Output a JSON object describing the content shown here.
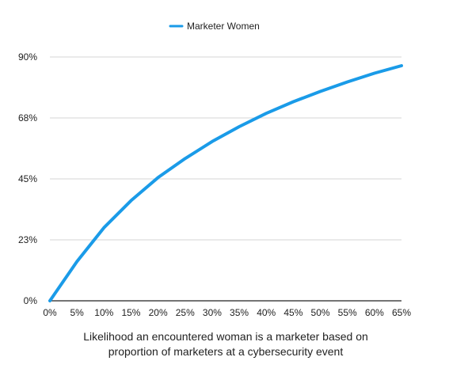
{
  "chart_data": {
    "type": "line",
    "title": "",
    "xlabel": "Likelihood an encountered woman is a marketer based on proportion of marketers at a cybersecurity event",
    "xlabel_lines": [
      "Likelihood an encountered woman is a marketer based on",
      "proportion of marketers at a cybersecurity event"
    ],
    "ylabel": "",
    "x": [
      0,
      5,
      10,
      15,
      20,
      25,
      30,
      35,
      40,
      45,
      50,
      55,
      60,
      65
    ],
    "x_tick_labels": [
      "0%",
      "5%",
      "10%",
      "15%",
      "20%",
      "25%",
      "30%",
      "35%",
      "40%",
      "45%",
      "50%",
      "55%",
      "60%",
      "65%"
    ],
    "y_ticks": [
      0,
      22.5,
      45,
      67.5,
      90
    ],
    "y_tick_labels": [
      "0%",
      "23%",
      "45%",
      "68%",
      "90%"
    ],
    "ylim": [
      0,
      90
    ],
    "xlim": [
      0,
      65
    ],
    "series": [
      {
        "name": "Marketer Women",
        "color": "#1a9be8",
        "values": [
          0,
          14.5,
          27.0,
          37.0,
          45.5,
          52.5,
          58.8,
          64.3,
          69.2,
          73.5,
          77.3,
          80.8,
          84.0,
          86.8
        ]
      }
    ],
    "legend_position": "top-center",
    "grid": true
  }
}
